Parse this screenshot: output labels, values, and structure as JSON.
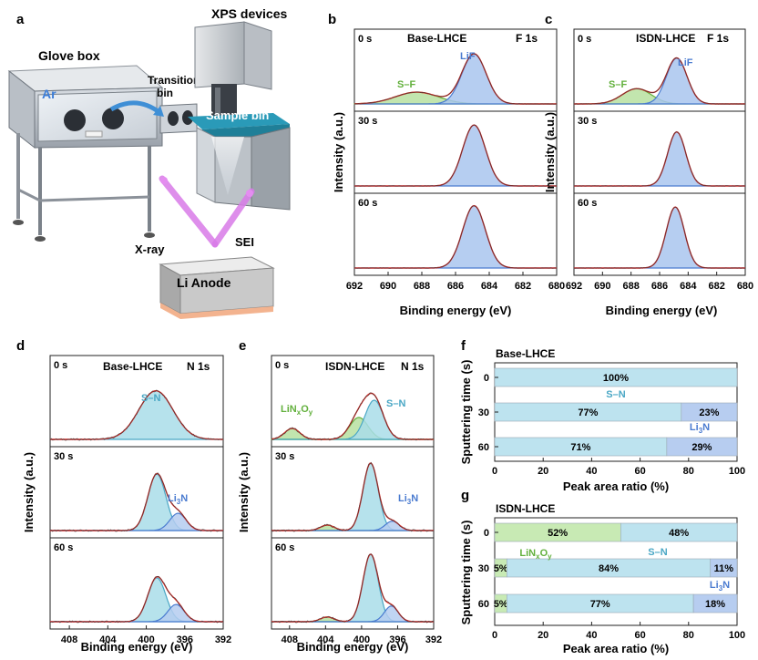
{
  "figure": {
    "panels": {
      "a": {
        "letter": "a",
        "glove_box": "Glove box",
        "xps_devices": "XPS devices",
        "ar": "Ar",
        "transition_bin": [
          "Transition",
          "bin"
        ],
        "sample_bin": "Sample bin",
        "xray": "X-ray",
        "sei": "SEI",
        "li_anode": "Li Anode"
      },
      "b": {
        "letter": "b",
        "sample": "Base-LHCE",
        "core": "F 1s",
        "peaks": [
          "S–F",
          "LiF"
        ],
        "times": [
          "0 s",
          "30 s",
          "60 s"
        ],
        "xticks": [
          "692",
          "690",
          "688",
          "686",
          "684",
          "682",
          "680"
        ],
        "xlabel": "Binding energy (eV)",
        "ylabel": "Intensity (a.u.)"
      },
      "c": {
        "letter": "c",
        "sample": "ISDN-LHCE",
        "core": "F 1s",
        "peaks": [
          "S–F",
          "LiF"
        ],
        "times": [
          "0 s",
          "30 s",
          "60 s"
        ],
        "xticks": [
          "692",
          "690",
          "688",
          "686",
          "684",
          "682",
          "680"
        ],
        "xlabel": "Binding energy (eV)",
        "ylabel": "Intensity (a.u.)"
      },
      "d": {
        "letter": "d",
        "sample": "Base-LHCE",
        "core": "N 1s",
        "peaks": [
          "S–N",
          "Li3N"
        ],
        "times": [
          "0 s",
          "30 s",
          "60 s"
        ],
        "xticks": [
          "408",
          "404",
          "400",
          "396",
          "392"
        ],
        "xlabel": "Binding energy (eV)",
        "ylabel": "Intensity (a.u.)"
      },
      "e": {
        "letter": "e",
        "sample": "ISDN-LHCE",
        "core": "N 1s",
        "peaks": [
          "LiNxOy",
          "S–N",
          "Li3N"
        ],
        "times": [
          "0 s",
          "30 s",
          "60 s"
        ],
        "xticks": [
          "408",
          "404",
          "400",
          "396",
          "392"
        ],
        "xlabel": "Binding energy (eV)",
        "ylabel": "Intensity (a.u.)"
      },
      "f": {
        "letter": "f",
        "title": "Base-LHCE"
      },
      "g": {
        "letter": "g",
        "title": "ISDN-LHCE"
      }
    },
    "colors": {
      "lif_fill": "#a9c5ee",
      "lif_line": "#4a7bd0",
      "sf_fill": "#b7e0a0",
      "sf_line": "#62b03c",
      "sn_fill": "#a9dde9",
      "sn_line": "#4aa7c5",
      "li3n_fill": "#b5cdf0",
      "li3n_line": "#4a7bd0",
      "envelope": "#e0302a",
      "raw": "#333333",
      "bar_sn": "#bde3ef",
      "bar_li3n": "#b7cdf0",
      "bar_linxoy": "#c8eab4"
    }
  },
  "chart_data": [
    {
      "id": "b",
      "type": "line",
      "title": "Base-LHCE F 1s",
      "xlabel": "Binding energy (eV)",
      "ylabel": "Intensity (a.u.)",
      "xlim": [
        692,
        680
      ],
      "series": [
        {
          "name": "0 s",
          "peaks": [
            {
              "label": "S–F",
              "center": 688.3,
              "fwhm": 3.0,
              "amp": 0.17
            },
            {
              "label": "LiF",
              "center": 684.9,
              "fwhm": 1.7,
              "amp": 0.72
            }
          ]
        },
        {
          "name": "30 s",
          "peaks": [
            {
              "label": "LiF",
              "center": 684.9,
              "fwhm": 1.6,
              "amp": 0.88
            }
          ]
        },
        {
          "name": "60 s",
          "peaks": [
            {
              "label": "LiF",
              "center": 684.9,
              "fwhm": 1.6,
              "amp": 0.9
            }
          ]
        }
      ]
    },
    {
      "id": "c",
      "type": "line",
      "title": "ISDN-LHCE F 1s",
      "xlabel": "Binding energy (eV)",
      "ylabel": "Intensity (a.u.)",
      "xlim": [
        692,
        680
      ],
      "series": [
        {
          "name": "0 s",
          "peaks": [
            {
              "label": "S–F",
              "center": 687.6,
              "fwhm": 2.4,
              "amp": 0.22
            },
            {
              "label": "LiF",
              "center": 684.8,
              "fwhm": 1.7,
              "amp": 0.66
            }
          ]
        },
        {
          "name": "30 s",
          "peaks": [
            {
              "label": "LiF",
              "center": 684.8,
              "fwhm": 1.5,
              "amp": 0.78
            }
          ]
        },
        {
          "name": "60 s",
          "peaks": [
            {
              "label": "LiF",
              "center": 684.9,
              "fwhm": 1.5,
              "amp": 0.88
            }
          ]
        }
      ]
    },
    {
      "id": "d",
      "type": "line",
      "title": "Base-LHCE N 1s",
      "xlabel": "Binding energy (eV)",
      "ylabel": "Intensity (a.u.)",
      "xlim": [
        410,
        392
      ],
      "series": [
        {
          "name": "0 s",
          "peaks": [
            {
              "label": "S–N",
              "center": 399.0,
              "fwhm": 4.2,
              "amp": 0.62
            }
          ]
        },
        {
          "name": "30 s",
          "peaks": [
            {
              "label": "S–N",
              "center": 398.9,
              "fwhm": 2.2,
              "amp": 0.72
            },
            {
              "label": "Li3N",
              "center": 396.7,
              "fwhm": 2.0,
              "amp": 0.22
            }
          ]
        },
        {
          "name": "60 s",
          "peaks": [
            {
              "label": "S–N",
              "center": 398.9,
              "fwhm": 2.2,
              "amp": 0.56
            },
            {
              "label": "Li3N",
              "center": 396.9,
              "fwhm": 2.0,
              "amp": 0.22
            }
          ]
        }
      ]
    },
    {
      "id": "e",
      "type": "line",
      "title": "ISDN-LHCE N 1s",
      "xlabel": "Binding energy (eV)",
      "ylabel": "Intensity (a.u.)",
      "xlim": [
        410,
        392
      ],
      "series": [
        {
          "name": "0 s",
          "peaks": [
            {
              "label": "LiNxOy",
              "center": 407.7,
              "fwhm": 2.0,
              "amp": 0.14
            },
            {
              "label": "LiNxOy",
              "center": 400.3,
              "fwhm": 2.4,
              "amp": 0.28
            },
            {
              "label": "S–N",
              "center": 398.6,
              "fwhm": 2.4,
              "amp": 0.5
            }
          ]
        },
        {
          "name": "30 s",
          "peaks": [
            {
              "label": "LiNxOy",
              "center": 403.8,
              "fwhm": 1.8,
              "amp": 0.07
            },
            {
              "label": "S–N",
              "center": 399.0,
              "fwhm": 2.0,
              "amp": 0.86
            },
            {
              "label": "Li3N",
              "center": 396.6,
              "fwhm": 1.8,
              "amp": 0.12
            }
          ]
        },
        {
          "name": "60 s",
          "peaks": [
            {
              "label": "LiNxOy",
              "center": 403.8,
              "fwhm": 1.8,
              "amp": 0.06
            },
            {
              "label": "S–N",
              "center": 399.0,
              "fwhm": 2.0,
              "amp": 0.86
            },
            {
              "label": "Li3N",
              "center": 396.7,
              "fwhm": 1.8,
              "amp": 0.2
            }
          ]
        }
      ]
    },
    {
      "id": "f",
      "type": "bar",
      "orientation": "horizontal",
      "stacked": true,
      "title": "Base-LHCE",
      "xlabel": "Peak area ratio (%)",
      "ylabel": "Sputtering time (s)",
      "xlim": [
        0,
        100
      ],
      "xticks": [
        "0",
        "20",
        "40",
        "60",
        "80",
        "100"
      ],
      "categories": [
        "0",
        "30",
        "60"
      ],
      "series": [
        {
          "name": "S–N",
          "values": [
            100,
            77,
            71
          ],
          "labels": [
            "100%",
            "77%",
            "71%"
          ]
        },
        {
          "name": "Li3N",
          "values": [
            0,
            23,
            29
          ],
          "labels": [
            "",
            "23%",
            "29%"
          ]
        }
      ]
    },
    {
      "id": "g",
      "type": "bar",
      "orientation": "horizontal",
      "stacked": true,
      "title": "ISDN-LHCE",
      "xlabel": "Peak area ratio (%)",
      "ylabel": "Sputtering time (s)",
      "xlim": [
        0,
        100
      ],
      "xticks": [
        "0",
        "20",
        "40",
        "60",
        "80",
        "100"
      ],
      "categories": [
        "0",
        "30",
        "60"
      ],
      "series": [
        {
          "name": "LiNxOy",
          "values": [
            52,
            5,
            5
          ],
          "labels": [
            "52%",
            "5%",
            "5%"
          ]
        },
        {
          "name": "S–N",
          "values": [
            48,
            84,
            77
          ],
          "labels": [
            "48%",
            "84%",
            "77%"
          ]
        },
        {
          "name": "Li3N",
          "values": [
            0,
            11,
            18
          ],
          "labels": [
            "",
            "11%",
            "18%"
          ]
        }
      ]
    }
  ]
}
